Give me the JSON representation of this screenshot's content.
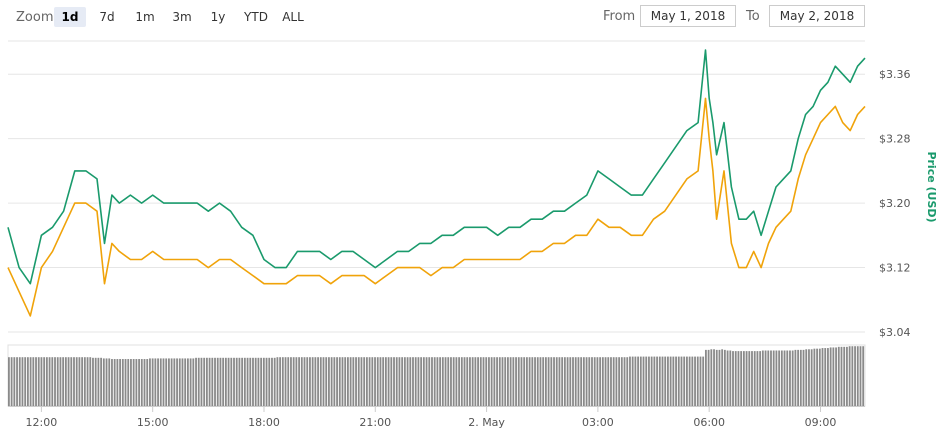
{
  "zoom": {
    "label": "Zoom",
    "buttons": [
      "1d",
      "7d",
      "1m",
      "3m",
      "1y",
      "YTD",
      "ALL"
    ],
    "active": "1d"
  },
  "range": {
    "from_label": "From",
    "from_value": "May 1, 2018",
    "to_label": "To",
    "to_value": "May 2, 2018"
  },
  "colors": {
    "price_usd": "#1a9a6c",
    "secondary": "#f0a30a",
    "volume": "#8a8a8a",
    "grid": "#e6e6e6"
  },
  "chart_data": {
    "type": "line",
    "ylabel": "Price (USD)",
    "ylim": [
      3.04,
      3.4
    ],
    "y_ticks": [
      "$3.04",
      "$3.12",
      "$3.20",
      "$3.28",
      "$3.36"
    ],
    "y_tick_values": [
      3.04,
      3.12,
      3.2,
      3.28,
      3.36
    ],
    "x_ticks": [
      "12:00",
      "15:00",
      "18:00",
      "21:00",
      "2. May",
      "03:00",
      "06:00",
      "09:00"
    ],
    "x_tick_hours": [
      12,
      15,
      18,
      21,
      24,
      27,
      30,
      33
    ],
    "xlim": [
      11.1,
      34.2
    ],
    "grid": true,
    "series": [
      {
        "name": "",
        "color": "#1a9a6c",
        "x": [
          11.1,
          11.4,
          11.7,
          12.0,
          12.3,
          12.6,
          12.9,
          13.2,
          13.5,
          13.7,
          13.9,
          14.1,
          14.4,
          14.7,
          15.0,
          15.3,
          15.6,
          15.9,
          16.2,
          16.5,
          16.8,
          17.1,
          17.4,
          17.7,
          18.0,
          18.3,
          18.6,
          18.9,
          19.2,
          19.5,
          19.8,
          20.1,
          20.4,
          20.7,
          21.0,
          21.3,
          21.6,
          21.9,
          22.2,
          22.5,
          22.8,
          23.1,
          23.4,
          23.7,
          24.0,
          24.3,
          24.6,
          24.9,
          25.2,
          25.5,
          25.8,
          26.1,
          26.4,
          26.7,
          27.0,
          27.3,
          27.6,
          27.9,
          28.2,
          28.5,
          28.8,
          29.1,
          29.4,
          29.7,
          29.9,
          30.0,
          30.1,
          30.2,
          30.4,
          30.6,
          30.8,
          31.0,
          31.2,
          31.4,
          31.6,
          31.8,
          32.0,
          32.2,
          32.4,
          32.6,
          32.8,
          33.0,
          33.2,
          33.4,
          33.6,
          33.8,
          34.0,
          34.2
        ],
        "y": [
          3.17,
          3.12,
          3.1,
          3.16,
          3.17,
          3.19,
          3.24,
          3.24,
          3.23,
          3.15,
          3.21,
          3.2,
          3.21,
          3.2,
          3.21,
          3.2,
          3.2,
          3.2,
          3.2,
          3.19,
          3.2,
          3.19,
          3.17,
          3.16,
          3.13,
          3.12,
          3.12,
          3.14,
          3.14,
          3.14,
          3.13,
          3.14,
          3.14,
          3.13,
          3.12,
          3.13,
          3.14,
          3.14,
          3.15,
          3.15,
          3.16,
          3.16,
          3.17,
          3.17,
          3.17,
          3.16,
          3.17,
          3.17,
          3.18,
          3.18,
          3.19,
          3.19,
          3.2,
          3.21,
          3.24,
          3.23,
          3.22,
          3.21,
          3.21,
          3.23,
          3.25,
          3.27,
          3.29,
          3.3,
          3.39,
          3.33,
          3.3,
          3.26,
          3.3,
          3.22,
          3.18,
          3.18,
          3.19,
          3.16,
          3.19,
          3.22,
          3.23,
          3.24,
          3.28,
          3.31,
          3.32,
          3.34,
          3.35,
          3.37,
          3.36,
          3.35,
          3.37,
          3.38
        ]
      },
      {
        "name": "",
        "color": "#f0a30a",
        "x": [
          11.1,
          11.4,
          11.7,
          12.0,
          12.3,
          12.6,
          12.9,
          13.2,
          13.5,
          13.7,
          13.9,
          14.1,
          14.4,
          14.7,
          15.0,
          15.3,
          15.6,
          15.9,
          16.2,
          16.5,
          16.8,
          17.1,
          17.4,
          17.7,
          18.0,
          18.3,
          18.6,
          18.9,
          19.2,
          19.5,
          19.8,
          20.1,
          20.4,
          20.7,
          21.0,
          21.3,
          21.6,
          21.9,
          22.2,
          22.5,
          22.8,
          23.1,
          23.4,
          23.7,
          24.0,
          24.3,
          24.6,
          24.9,
          25.2,
          25.5,
          25.8,
          26.1,
          26.4,
          26.7,
          27.0,
          27.3,
          27.6,
          27.9,
          28.2,
          28.5,
          28.8,
          29.1,
          29.4,
          29.7,
          29.9,
          30.0,
          30.1,
          30.2,
          30.4,
          30.6,
          30.8,
          31.0,
          31.2,
          31.4,
          31.6,
          31.8,
          32.0,
          32.2,
          32.4,
          32.6,
          32.8,
          33.0,
          33.2,
          33.4,
          33.6,
          33.8,
          34.0,
          34.2
        ],
        "y": [
          3.12,
          3.09,
          3.06,
          3.12,
          3.14,
          3.17,
          3.2,
          3.2,
          3.19,
          3.1,
          3.15,
          3.14,
          3.13,
          3.13,
          3.14,
          3.13,
          3.13,
          3.13,
          3.13,
          3.12,
          3.13,
          3.13,
          3.12,
          3.11,
          3.1,
          3.1,
          3.1,
          3.11,
          3.11,
          3.11,
          3.1,
          3.11,
          3.11,
          3.11,
          3.1,
          3.11,
          3.12,
          3.12,
          3.12,
          3.11,
          3.12,
          3.12,
          3.13,
          3.13,
          3.13,
          3.13,
          3.13,
          3.13,
          3.14,
          3.14,
          3.15,
          3.15,
          3.16,
          3.16,
          3.18,
          3.17,
          3.17,
          3.16,
          3.16,
          3.18,
          3.19,
          3.21,
          3.23,
          3.24,
          3.33,
          3.28,
          3.24,
          3.18,
          3.24,
          3.15,
          3.12,
          3.12,
          3.14,
          3.12,
          3.15,
          3.17,
          3.18,
          3.19,
          3.23,
          3.26,
          3.28,
          3.3,
          3.31,
          3.32,
          3.3,
          3.29,
          3.31,
          3.32
        ]
      }
    ],
    "volume": {
      "name": "",
      "color": "#8a8a8a",
      "levels": [
        0.8,
        0.8,
        0.8,
        0.8,
        0.8,
        0.8,
        0.8,
        0.8,
        0.8,
        0.8,
        0.8,
        0.8,
        0.8,
        0.8,
        0.8,
        0.8,
        0.8,
        0.8,
        0.8,
        0.8,
        0.8,
        0.8,
        0.8,
        0.8,
        0.8,
        0.8,
        0.8,
        0.8,
        0.8,
        0.8,
        0.8,
        0.79,
        0.79,
        0.79,
        0.79,
        0.78,
        0.78,
        0.78,
        0.77,
        0.77,
        0.77,
        0.77,
        0.77,
        0.77,
        0.77,
        0.77,
        0.77,
        0.77,
        0.77,
        0.77,
        0.77,
        0.77,
        0.78,
        0.78,
        0.78,
        0.78,
        0.78,
        0.78,
        0.78,
        0.78,
        0.78,
        0.78,
        0.78,
        0.78,
        0.78,
        0.78,
        0.78,
        0.78,
        0.78,
        0.79,
        0.79,
        0.79,
        0.79,
        0.79,
        0.79,
        0.79,
        0.79,
        0.79,
        0.79,
        0.79,
        0.79,
        0.79,
        0.79,
        0.79,
        0.79,
        0.79,
        0.79,
        0.79,
        0.79,
        0.79,
        0.79,
        0.79,
        0.79,
        0.79,
        0.79,
        0.79,
        0.79,
        0.79,
        0.79,
        0.8,
        0.8,
        0.8,
        0.8,
        0.8,
        0.8,
        0.8,
        0.8,
        0.8,
        0.8,
        0.8,
        0.8,
        0.8,
        0.8,
        0.8,
        0.8,
        0.8,
        0.8,
        0.8,
        0.8,
        0.8,
        0.8,
        0.8,
        0.8,
        0.8,
        0.8,
        0.8,
        0.8,
        0.8,
        0.8,
        0.8,
        0.8,
        0.8,
        0.8,
        0.8,
        0.8,
        0.8,
        0.8,
        0.8,
        0.8,
        0.8,
        0.8,
        0.8,
        0.8,
        0.8,
        0.8,
        0.8,
        0.8,
        0.8,
        0.8,
        0.8,
        0.8,
        0.8,
        0.8,
        0.8,
        0.8,
        0.8,
        0.8,
        0.8,
        0.8,
        0.8,
        0.8,
        0.8,
        0.8,
        0.8,
        0.8,
        0.8,
        0.8,
        0.8,
        0.8,
        0.8,
        0.8,
        0.8,
        0.8,
        0.8,
        0.8,
        0.8,
        0.8,
        0.8,
        0.8,
        0.8,
        0.8,
        0.8,
        0.8,
        0.8,
        0.8,
        0.8,
        0.8,
        0.8,
        0.8,
        0.8,
        0.8,
        0.8,
        0.8,
        0.8,
        0.8,
        0.8,
        0.8,
        0.8,
        0.8,
        0.8,
        0.8,
        0.8,
        0.8,
        0.8,
        0.8,
        0.8,
        0.8,
        0.8,
        0.8,
        0.8,
        0.8,
        0.8,
        0.8,
        0.8,
        0.8,
        0.8,
        0.8,
        0.8,
        0.8,
        0.8,
        0.8,
        0.8,
        0.8,
        0.8,
        0.8,
        0.8,
        0.8,
        0.8,
        0.8,
        0.81,
        0.81,
        0.81,
        0.81,
        0.81,
        0.81,
        0.81,
        0.81,
        0.81,
        0.81,
        0.81,
        0.81,
        0.81,
        0.81,
        0.81,
        0.81,
        0.81,
        0.81,
        0.81,
        0.81,
        0.81,
        0.81,
        0.81,
        0.81,
        0.81,
        0.81,
        0.81,
        0.81,
        0.92,
        0.92,
        0.93,
        0.93,
        0.92,
        0.92,
        0.93,
        0.92,
        0.91,
        0.91,
        0.9,
        0.9,
        0.9,
        0.9,
        0.9,
        0.9,
        0.9,
        0.9,
        0.9,
        0.9,
        0.9,
        0.91,
        0.91,
        0.91,
        0.91,
        0.91,
        0.91,
        0.91,
        0.91,
        0.91,
        0.91,
        0.91,
        0.91,
        0.92,
        0.92,
        0.92,
        0.92,
        0.93,
        0.93,
        0.93,
        0.94,
        0.94,
        0.94,
        0.95,
        0.95,
        0.95,
        0.96,
        0.96,
        0.96,
        0.97,
        0.97,
        0.97,
        0.97,
        0.98,
        0.98,
        0.98,
        0.98,
        0.98,
        0.98
      ]
    }
  }
}
